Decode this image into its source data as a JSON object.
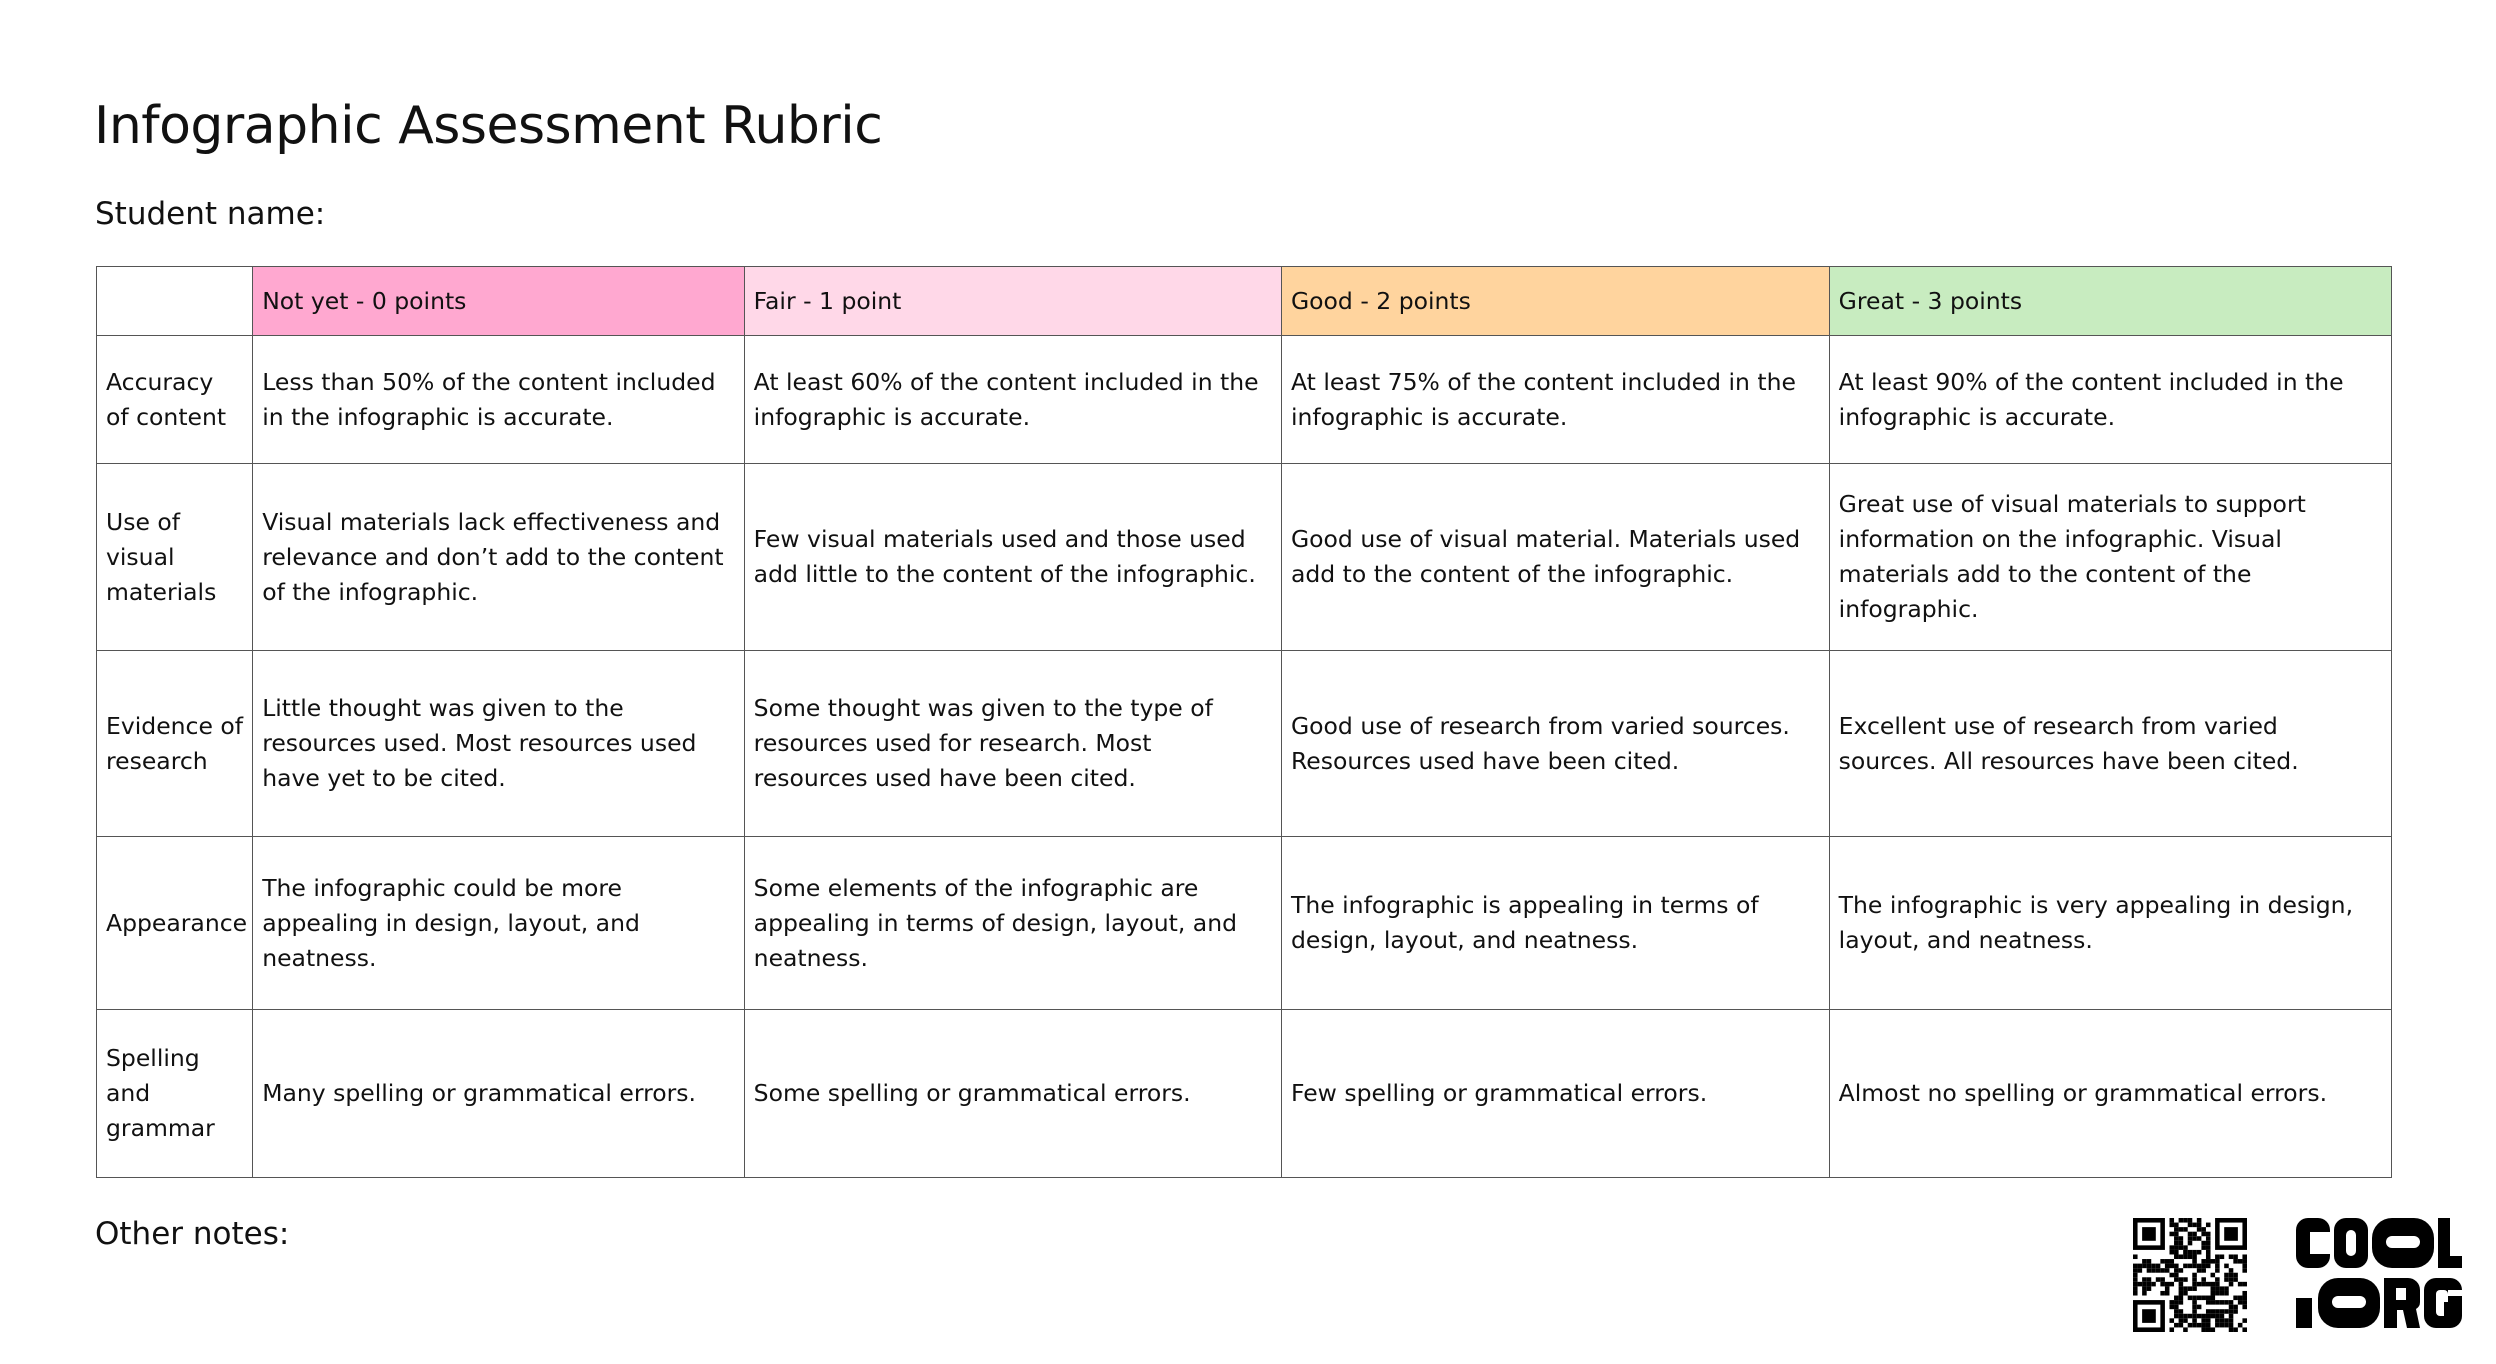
{
  "title": "Infographic Assessment Rubric",
  "student_name_label": "Student name:",
  "other_notes_label": "Other notes:",
  "levels": [
    {
      "label": "Not yet - 0 points",
      "color": "#ffa8d0"
    },
    {
      "label": "Fair - 1 point",
      "color": "#ffd8e8"
    },
    {
      "label": "Good - 2 points",
      "color": "#ffd49e"
    },
    {
      "label": "Great - 3 points",
      "color": "#c8ecc0"
    }
  ],
  "rows": [
    {
      "criterion": "Accuracy of content",
      "cells": [
        "Less than 50% of the content included in the infographic is accurate.",
        "At least 60% of the content included in the infographic is accurate.",
        "At least 75% of the content included in the infographic is accurate.",
        "At least 90% of the content included in the infographic is accurate."
      ]
    },
    {
      "criterion": "Use of visual materials",
      "cells": [
        "Visual materials lack effectiveness and relevance and don’t add to the content of the infographic.",
        "Few visual materials used and those used add little to the content of the infographic.",
        "Good use of visual material. Materials used add to the content of the infographic.",
        "Great use of visual materials to support information on the infographic. Visual materials add to the content of the infographic."
      ]
    },
    {
      "criterion": "Evidence of research",
      "cells": [
        "Little thought was given to the resources used. Most resources used have yet to be cited.",
        "Some thought was given to the type of resources used for research. Most resources used have been cited.",
        "Good use of research from varied sources. Resources used have been cited.",
        "Excellent use of research from varied sources. All resources have been cited."
      ]
    },
    {
      "criterion": "Appearance",
      "cells": [
        "The infographic could be more appealing in design, layout, and neatness.",
        "Some elements of the infographic are appealing in terms of design, layout, and neatness.",
        "The infographic is appealing in terms of design, layout, and neatness.",
        "The infographic is very appealing in design, layout, and neatness."
      ]
    },
    {
      "criterion": "Spelling and grammar",
      "cells": [
        "Many spelling or grammatical errors.",
        "Some spelling or grammatical errors.",
        "Few spelling or grammatical errors.",
        "Almost no spelling or grammatical errors."
      ]
    }
  ],
  "logo_text": "COOL.ORG",
  "icons": {
    "qr": "qr-code-icon",
    "logo": "cool-org-logo"
  }
}
